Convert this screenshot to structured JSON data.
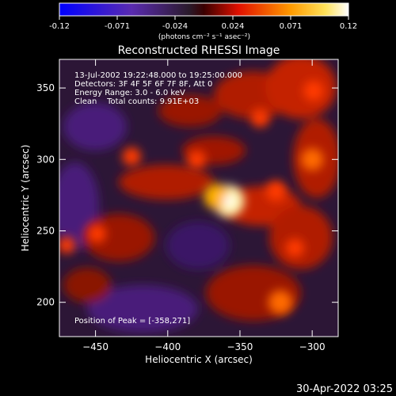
{
  "colorbar": {
    "ticks": [
      "-0.12",
      "-0.071",
      "-0.024",
      "0.024",
      "0.071",
      "0.12"
    ],
    "unit_label": "(photons cm⁻² s⁻¹ asec⁻²)",
    "range": [
      -0.12,
      0.12
    ],
    "colormap": [
      "#0000ff",
      "#1a1a1a",
      "#ff2a00",
      "#ffd200",
      "#ffffff"
    ]
  },
  "chart_data": {
    "type": "heatmap",
    "title": "Reconstructed RHESSI Image",
    "xlabel": "Heliocentric X (arcsec)",
    "ylabel": "Heliocentric Y (arcsec)",
    "xlim": [
      -475,
      -282
    ],
    "ylim": [
      176,
      370
    ],
    "xticks": [
      -450,
      -400,
      -350,
      -300
    ],
    "yticks": [
      200,
      250,
      300,
      350
    ],
    "xtick_labels": [
      "−450",
      "−400",
      "−350",
      "−300"
    ],
    "ytick_labels": [
      "200",
      "250",
      "300",
      "350"
    ],
    "peak": {
      "x": -358,
      "y": 271
    },
    "bright_sources": [
      {
        "x": -358,
        "y": 271,
        "value": 0.12
      },
      {
        "x": -366,
        "y": 274,
        "value": 0.09
      },
      {
        "x": -322,
        "y": 200,
        "value": 0.08
      },
      {
        "x": -300,
        "y": 300,
        "value": 0.07
      },
      {
        "x": -325,
        "y": 278,
        "value": 0.06
      },
      {
        "x": -299,
        "y": 348,
        "value": 0.06
      },
      {
        "x": -336,
        "y": 329,
        "value": 0.05
      },
      {
        "x": -425,
        "y": 302,
        "value": 0.05
      },
      {
        "x": -449,
        "y": 248,
        "value": 0.05
      },
      {
        "x": -470,
        "y": 240,
        "value": 0.04
      },
      {
        "x": -380,
        "y": 300,
        "value": 0.05
      },
      {
        "x": -312,
        "y": 238,
        "value": 0.05
      }
    ],
    "annotations": [
      "13-Jul-2002 19:22:48.000 to 19:25:00.000",
      "Detectors: 3F 4F 5F 6F 7F 8F, Att 0",
      "Energy Range: 3.0 - 6.0 keV",
      "Clean    Total counts: 9.91E+03",
      "Position of Peak = [-358,271]"
    ]
  },
  "footer": {
    "timestamp": "30-Apr-2022 03:25"
  }
}
